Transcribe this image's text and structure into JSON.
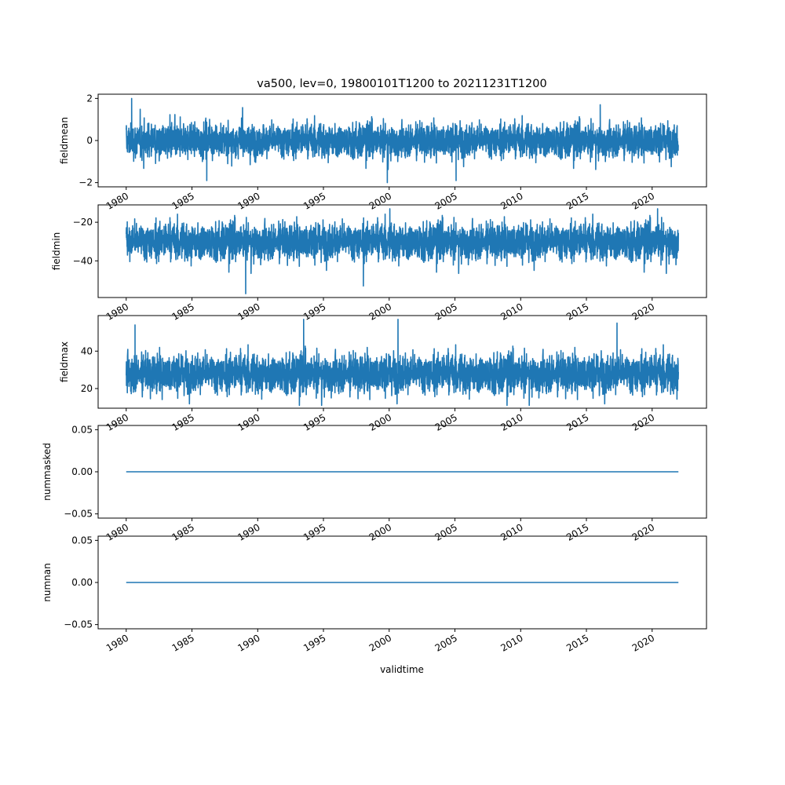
{
  "chart_data": {
    "type": "line",
    "title": "va500, lev=0, 19800101T1200 to 20211231T1200",
    "xlabel": "validtime",
    "x_range": [
      "1980-01-01",
      "2021-12-31"
    ],
    "xlim": [
      "1977-11-12",
      "2024-02-19"
    ],
    "x_tick_labels": [
      "1980",
      "1985",
      "1990",
      "1995",
      "2000",
      "2005",
      "2010",
      "2015",
      "2020"
    ],
    "line_color": "#1f77b4",
    "grid": false,
    "panels": [
      {
        "name": "fieldmean",
        "ylabel": "fieldmean",
        "ylim": [
          -2.2,
          2.2
        ],
        "y_ticks": [
          -2,
          0,
          2
        ],
        "y_tick_labels": [
          "−2",
          "0",
          "2"
        ],
        "series_summary": {
          "center": 0,
          "typical_low": -1.0,
          "typical_high": 1.0,
          "min": -2.0,
          "max": 2.0,
          "noise": "dense daily"
        },
        "extremes": [
          {
            "x": "1980-06-01",
            "y": 2.0
          },
          {
            "x": "1986-02-15",
            "y": -1.9
          },
          {
            "x": "1999-11-10",
            "y": -2.0
          },
          {
            "x": "2005-02-01",
            "y": -1.9
          },
          {
            "x": "2016-01-20",
            "y": 1.7
          }
        ]
      },
      {
        "name": "fieldmin",
        "ylabel": "fieldmin",
        "ylim": [
          -59,
          -11
        ],
        "y_ticks": [
          -40,
          -20
        ],
        "y_tick_labels": [
          "−40",
          "−20"
        ],
        "series_summary": {
          "center": -30,
          "typical_low": -42,
          "typical_high": -18,
          "min": -57,
          "max": -13,
          "noise": "dense daily"
        },
        "extremes": [
          {
            "x": "1989-02-01",
            "y": -57
          },
          {
            "x": "1998-01-15",
            "y": -53
          },
          {
            "x": "2000-01-20",
            "y": -13
          },
          {
            "x": "2020-06-01",
            "y": -13
          }
        ]
      },
      {
        "name": "fieldmax",
        "ylabel": "fieldmax",
        "ylim": [
          9.5,
          59
        ],
        "y_ticks": [
          20,
          40
        ],
        "y_tick_labels": [
          "20",
          "40"
        ],
        "series_summary": {
          "center": 28,
          "typical_low": 16,
          "typical_high": 42,
          "min": 11,
          "max": 57,
          "noise": "dense daily"
        },
        "extremes": [
          {
            "x": "1993-07-01",
            "y": 57
          },
          {
            "x": "2000-09-01",
            "y": 57
          },
          {
            "x": "1980-09-01",
            "y": 54
          },
          {
            "x": "2017-05-01",
            "y": 55
          }
        ]
      },
      {
        "name": "nummasked",
        "ylabel": "nummasked",
        "ylim": [
          -0.055,
          0.055
        ],
        "y_ticks": [
          -0.05,
          0.0,
          0.05
        ],
        "y_tick_labels": [
          "−0.05",
          "0.00",
          "0.05"
        ],
        "constant_value": 0.0
      },
      {
        "name": "numnan",
        "ylabel": "numnan",
        "ylim": [
          -0.055,
          0.055
        ],
        "y_ticks": [
          -0.05,
          0.0,
          0.05
        ],
        "y_tick_labels": [
          "−0.05",
          "0.00",
          "0.05"
        ],
        "constant_value": 0.0
      }
    ]
  }
}
